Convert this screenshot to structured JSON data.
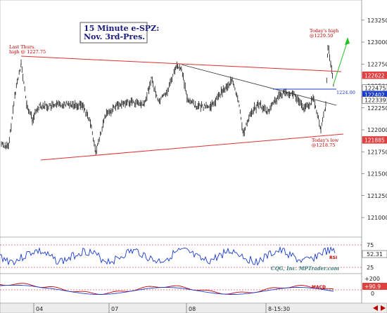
{
  "chart_data": [
    {
      "type": "bar",
      "style": "OHLC price bars",
      "title": "15 Minute e-SPZ:",
      "subtitle": "Nov. 3rd-Pres.",
      "ylim": [
        1207500,
        1234000
      ],
      "y_ticks": [
        1210000,
        1210500,
        1211000,
        1211500,
        1212000,
        1212500,
        1213000,
        1213500,
        1214000,
        1214500,
        1215000,
        1215500,
        1216000,
        1216500,
        1217000,
        1217500,
        1218000,
        1218500,
        1219000,
        1219500,
        1220000,
        1220500,
        1221000,
        1221500,
        1222000,
        1222500,
        1223000,
        1223500,
        1224000,
        1224500,
        1225000,
        1225500,
        1226000,
        1226500,
        1227000,
        1227500,
        1228000,
        1228500,
        1229000,
        1229500,
        1230000,
        1230500,
        1231000,
        1231500,
        1232000,
        1232500
      ],
      "y_tick_labels": [
        "121000",
        "121250",
        "121500",
        "121750",
        "122000",
        "122250",
        "122500",
        "122750",
        "123000",
        "123250"
      ],
      "y_tick_values": [
        1210000,
        1212500,
        1215000,
        1217500,
        1220000,
        1222500,
        1225000,
        1227500,
        1230000,
        1232500
      ],
      "x_tick_labels": [
        "04",
        "07",
        "08",
        "8-15:30"
      ],
      "price_tags": [
        {
          "label": "122622",
          "value": 1226220,
          "color": "#e04040"
        },
        {
          "label": "122475",
          "value": 1224750,
          "color": "#ffffff"
        },
        {
          "label": "122402",
          "value": 1224020,
          "color": "#1a3bd0"
        },
        {
          "label": "122339",
          "value": 1223390,
          "color": "#ffffff"
        },
        {
          "label": "121885",
          "value": 1218850,
          "color": "#e04040"
        }
      ],
      "annotations": [
        {
          "text": "Last Thurs.",
          "text2": "high @ 1227.75"
        },
        {
          "text": "Today's high",
          "text2": "@1229.50"
        },
        {
          "text": "Today's low",
          "text2": "@1218.75"
        },
        {
          "text": "1224.00"
        }
      ],
      "series_color": "#111111"
    },
    {
      "type": "line",
      "name": "RSI",
      "value_label": "52.31",
      "grid_labels": [
        "75",
        "25"
      ]
    },
    {
      "type": "line",
      "name": "MACD",
      "value_labels": [
        "+200",
        "+90.9",
        "0"
      ],
      "colors": [
        "#c00000",
        "#1a3bd0"
      ]
    }
  ],
  "credit": "CQG, Inc. MPTrader.com",
  "colors": {
    "trendline_red": "#e03030",
    "trendline_black": "#333333",
    "support_blue": "#1a3bd0",
    "arrow_green": "#22c022",
    "rsi_line": "#1a3bd0"
  }
}
